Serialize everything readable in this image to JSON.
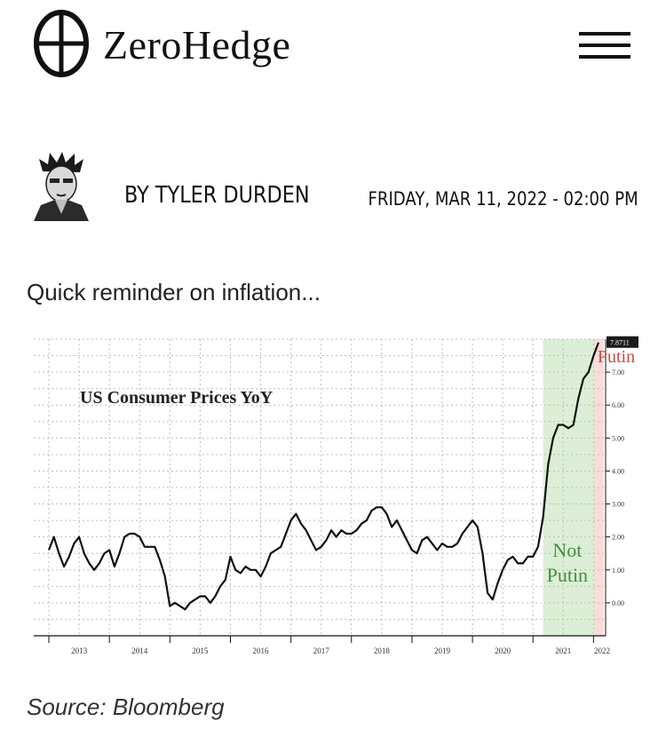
{
  "site": {
    "logo_text": "ZeroHedge"
  },
  "menu": {
    "icon": "hamburger-menu-icon"
  },
  "byline": {
    "author": "BY TYLER DURDEN",
    "date": "FRIDAY, MAR 11, 2022 - 02:00 PM"
  },
  "article": {
    "intro": "Quick reminder on inflation...",
    "source": "Source: Bloomberg"
  },
  "chart_data": {
    "type": "line",
    "title": "US Consumer Prices YoY",
    "xlabel": "",
    "ylabel": "",
    "x_tick_labels": [
      "2013",
      "2014",
      "2015",
      "2016",
      "2017",
      "2018",
      "2019",
      "2020",
      "2021",
      "2022"
    ],
    "y_tick_labels": [
      "0.00",
      "1.00",
      "2.00",
      "3.00",
      "4.00",
      "5.00",
      "6.00",
      "7.00"
    ],
    "ylim": [
      -1.0,
      8.0
    ],
    "grid": true,
    "last_value_label": "7.8711",
    "annotations": [
      {
        "text": "Not Putin",
        "lines": [
          "Not",
          "Putin"
        ],
        "color": "#3f8f3f",
        "shade": "#dcefd6",
        "range": [
          "2021-03",
          "2021-12"
        ]
      },
      {
        "text": "Putin",
        "color": "#c0504d",
        "shade": "#f8d7d3",
        "range": [
          "2022-01",
          "2022-02"
        ]
      }
    ],
    "series": [
      {
        "values": [
          [
            "2013-01",
            1.6
          ],
          [
            "2013-02",
            2.0
          ],
          [
            "2013-03",
            1.5
          ],
          [
            "2013-04",
            1.1
          ],
          [
            "2013-05",
            1.4
          ],
          [
            "2013-06",
            1.8
          ],
          [
            "2013-07",
            2.0
          ],
          [
            "2013-08",
            1.5
          ],
          [
            "2013-09",
            1.2
          ],
          [
            "2013-10",
            1.0
          ],
          [
            "2013-11",
            1.2
          ],
          [
            "2013-12",
            1.5
          ],
          [
            "2014-01",
            1.6
          ],
          [
            "2014-02",
            1.1
          ],
          [
            "2014-03",
            1.5
          ],
          [
            "2014-04",
            2.0
          ],
          [
            "2014-05",
            2.1
          ],
          [
            "2014-06",
            2.1
          ],
          [
            "2014-07",
            2.0
          ],
          [
            "2014-08",
            1.7
          ],
          [
            "2014-09",
            1.7
          ],
          [
            "2014-10",
            1.7
          ],
          [
            "2014-11",
            1.3
          ],
          [
            "2014-12",
            0.8
          ],
          [
            "2015-01",
            -0.1
          ],
          [
            "2015-02",
            0.0
          ],
          [
            "2015-03",
            -0.1
          ],
          [
            "2015-04",
            -0.2
          ],
          [
            "2015-05",
            0.0
          ],
          [
            "2015-06",
            0.1
          ],
          [
            "2015-07",
            0.2
          ],
          [
            "2015-08",
            0.2
          ],
          [
            "2015-09",
            0.0
          ],
          [
            "2015-10",
            0.2
          ],
          [
            "2015-11",
            0.5
          ],
          [
            "2015-12",
            0.7
          ],
          [
            "2016-01",
            1.4
          ],
          [
            "2016-02",
            1.0
          ],
          [
            "2016-03",
            0.9
          ],
          [
            "2016-04",
            1.1
          ],
          [
            "2016-05",
            1.0
          ],
          [
            "2016-06",
            1.0
          ],
          [
            "2016-07",
            0.8
          ],
          [
            "2016-08",
            1.1
          ],
          [
            "2016-09",
            1.5
          ],
          [
            "2016-10",
            1.6
          ],
          [
            "2016-11",
            1.7
          ],
          [
            "2016-12",
            2.1
          ],
          [
            "2017-01",
            2.5
          ],
          [
            "2017-02",
            2.7
          ],
          [
            "2017-03",
            2.4
          ],
          [
            "2017-04",
            2.2
          ],
          [
            "2017-05",
            1.9
          ],
          [
            "2017-06",
            1.6
          ],
          [
            "2017-07",
            1.7
          ],
          [
            "2017-08",
            1.9
          ],
          [
            "2017-09",
            2.2
          ],
          [
            "2017-10",
            2.0
          ],
          [
            "2017-11",
            2.2
          ],
          [
            "2017-12",
            2.1
          ],
          [
            "2018-01",
            2.1
          ],
          [
            "2018-02",
            2.2
          ],
          [
            "2018-03",
            2.4
          ],
          [
            "2018-04",
            2.5
          ],
          [
            "2018-05",
            2.8
          ],
          [
            "2018-06",
            2.9
          ],
          [
            "2018-07",
            2.9
          ],
          [
            "2018-08",
            2.7
          ],
          [
            "2018-09",
            2.3
          ],
          [
            "2018-10",
            2.5
          ],
          [
            "2018-11",
            2.2
          ],
          [
            "2018-12",
            1.9
          ],
          [
            "2019-01",
            1.6
          ],
          [
            "2019-02",
            1.5
          ],
          [
            "2019-03",
            1.9
          ],
          [
            "2019-04",
            2.0
          ],
          [
            "2019-05",
            1.8
          ],
          [
            "2019-06",
            1.6
          ],
          [
            "2019-07",
            1.8
          ],
          [
            "2019-08",
            1.7
          ],
          [
            "2019-09",
            1.7
          ],
          [
            "2019-10",
            1.8
          ],
          [
            "2019-11",
            2.1
          ],
          [
            "2019-12",
            2.3
          ],
          [
            "2020-01",
            2.5
          ],
          [
            "2020-02",
            2.3
          ],
          [
            "2020-03",
            1.5
          ],
          [
            "2020-04",
            0.3
          ],
          [
            "2020-05",
            0.1
          ],
          [
            "2020-06",
            0.6
          ],
          [
            "2020-07",
            1.0
          ],
          [
            "2020-08",
            1.3
          ],
          [
            "2020-09",
            1.4
          ],
          [
            "2020-10",
            1.2
          ],
          [
            "2020-11",
            1.2
          ],
          [
            "2020-12",
            1.4
          ],
          [
            "2021-01",
            1.4
          ],
          [
            "2021-02",
            1.7
          ],
          [
            "2021-03",
            2.6
          ],
          [
            "2021-04",
            4.2
          ],
          [
            "2021-05",
            5.0
          ],
          [
            "2021-06",
            5.4
          ],
          [
            "2021-07",
            5.4
          ],
          [
            "2021-08",
            5.3
          ],
          [
            "2021-09",
            5.4
          ],
          [
            "2021-10",
            6.2
          ],
          [
            "2021-11",
            6.8
          ],
          [
            "2021-12",
            7.0
          ],
          [
            "2022-01",
            7.5
          ],
          [
            "2022-02",
            7.9
          ]
        ]
      }
    ]
  },
  "colors": {
    "text": "#111111",
    "grid": "#bdbdbd",
    "line": "#111111",
    "green_shade": "#dcefd6",
    "red_shade": "#f8d7d3",
    "green_text": "#3f8f3f",
    "red_text": "#c0504d"
  }
}
